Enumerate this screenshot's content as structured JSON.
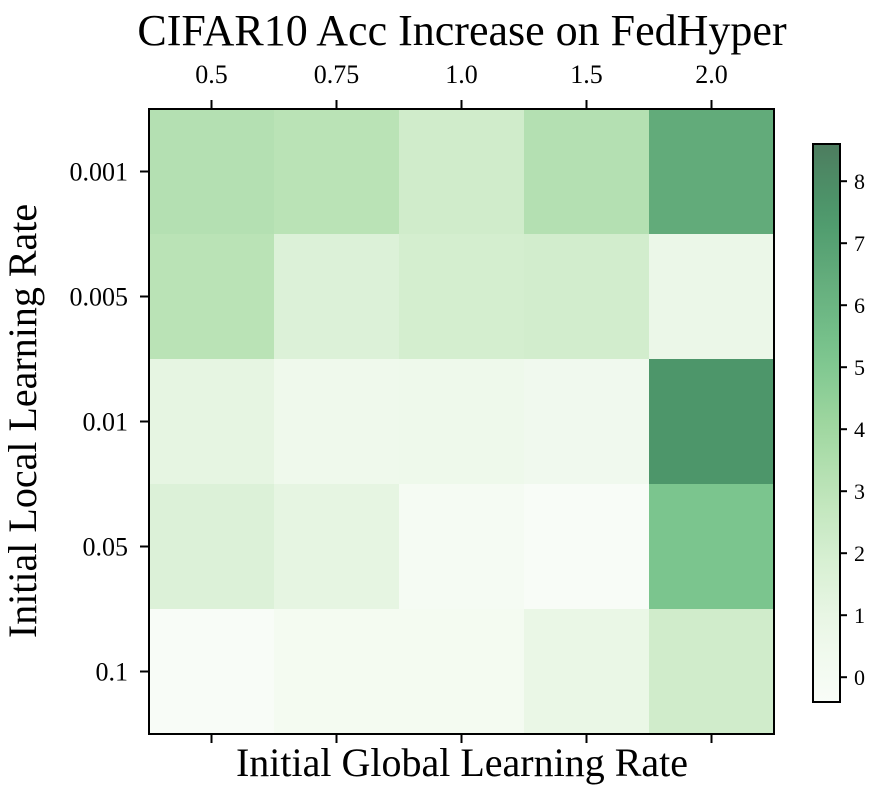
{
  "chart_data": {
    "type": "heatmap",
    "title": "CIFAR10 Acc Increase on FedHyper",
    "xlabel": "Initial Global Learning Rate",
    "ylabel": "Initial Local Learning Rate",
    "x_categories": [
      "0.5",
      "0.75",
      "1.0",
      "1.5",
      "2.0"
    ],
    "y_categories": [
      "0.001",
      "0.005",
      "0.01",
      "0.05",
      "0.1"
    ],
    "values": [
      [
        3.3,
        3.1,
        2.2,
        3.3,
        6.5
      ],
      [
        3.1,
        1.6,
        2.0,
        2.1,
        0.8
      ],
      [
        1.1,
        0.5,
        0.6,
        0.4,
        7.6
      ],
      [
        1.6,
        1.1,
        0.0,
        -0.3,
        5.2
      ],
      [
        -0.3,
        0.1,
        0.1,
        0.9,
        2.2
      ]
    ],
    "colorbar": {
      "min": -0.4,
      "max": 8.6,
      "ticks": [
        "0",
        "1",
        "2",
        "3",
        "4",
        "5",
        "6",
        "7",
        "8"
      ],
      "colormap": "Greens",
      "alpha": 0.7
    },
    "x_axis_position": "top",
    "grid": false,
    "colors": {
      "low": "#f7fcf5",
      "high": "#00441b"
    }
  }
}
